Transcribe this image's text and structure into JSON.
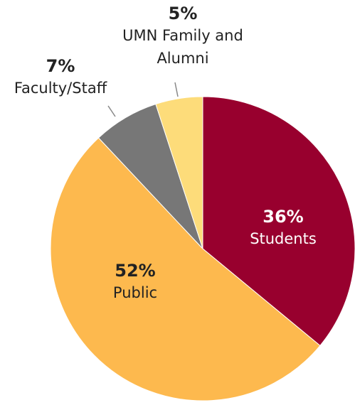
{
  "chart_data": {
    "type": "pie",
    "categories": [
      "Students",
      "Public",
      "Faculty/Staff",
      "UMN Family and Alumni"
    ],
    "values": [
      36,
      52,
      7,
      5
    ],
    "value_labels": [
      "36%",
      "52%",
      "7%",
      "5%"
    ],
    "colors": [
      "#98002e",
      "#fdb94e",
      "#777777",
      "#fddc7a"
    ]
  }
}
